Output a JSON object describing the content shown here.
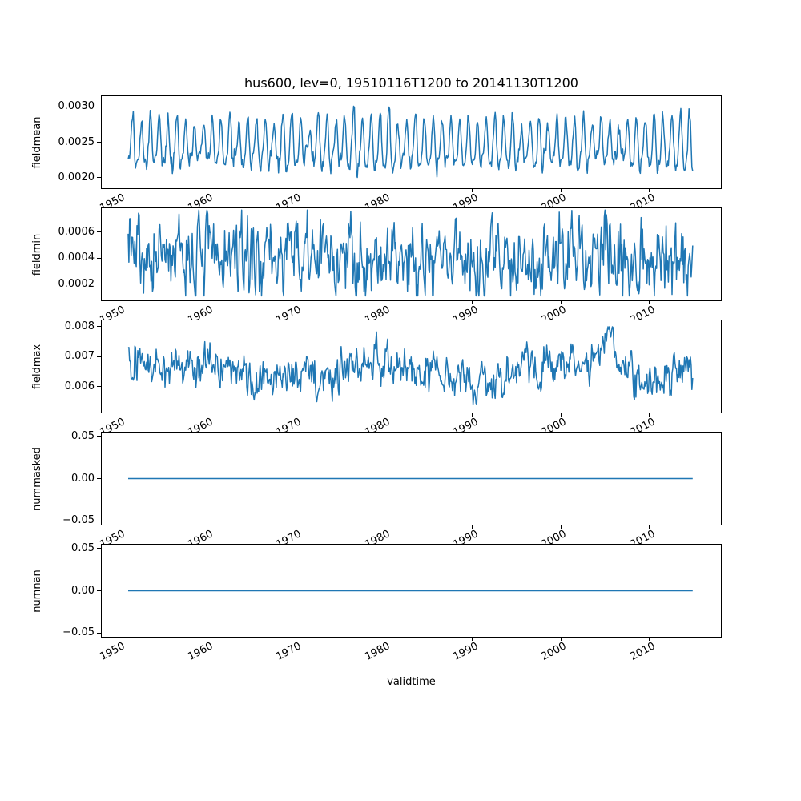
{
  "figure": {
    "title": "hus600, lev=0, 19510116T1200 to 20141130T1200",
    "xlabel": "validtime",
    "background": "#ffffff",
    "line_color": "#1f77b4",
    "frame_color": "#000000",
    "text_color": "#000000"
  },
  "x_axis": {
    "xlim": [
      1947.96,
      2018.2
    ],
    "ticks": [
      1950,
      1960,
      1970,
      1980,
      1990,
      2000,
      2010
    ],
    "tick_labels": [
      "1950",
      "1960",
      "1970",
      "1980",
      "1990",
      "2000",
      "2010"
    ]
  },
  "chart_data": [
    {
      "type": "line",
      "ylabel": "fieldmean",
      "ylim": [
        0.00184,
        0.00316
      ],
      "yticks": [
        0.002,
        0.0025,
        0.003
      ],
      "ytick_labels": [
        "0.0020",
        "0.0025",
        "0.0030"
      ],
      "series": [
        {
          "name": "fieldmean",
          "color": "#1f77b4",
          "x_start": 1951.042,
          "x_end": 2014.915,
          "n_points": 767,
          "points_per_year": 12,
          "approx_mean": 0.00245,
          "approx_range": [
            0.0019,
            0.0031
          ],
          "pattern": "regular annual seasonal cycle, sharp peaks near 0.0028-0.0031, troughs near 0.0019-0.0021",
          "generator": {
            "seed": 42,
            "base": 0.00245,
            "seasonal_amp": 0.00032,
            "seasonal_phase": -1.8,
            "amp_jitter": 0.22,
            "harmonic_amp": 9e-05,
            "harmonic_phase": 0.6,
            "noise": 5e-05,
            "ar": 0.2,
            "clip": [
              0.00184,
              0.00316
            ]
          }
        }
      ]
    },
    {
      "type": "line",
      "ylabel": "fieldmin",
      "ylim": [
        7e-05,
        0.00079
      ],
      "yticks": [
        0.0002,
        0.0004,
        0.0006
      ],
      "ytick_labels": [
        "0.0002",
        "0.0004",
        "0.0006"
      ],
      "series": [
        {
          "name": "fieldmin",
          "color": "#1f77b4",
          "x_start": 1951.042,
          "x_end": 2014.915,
          "n_points": 767,
          "points_per_year": 12,
          "approx_mean": 0.0004,
          "approx_range": [
            0.00011,
            0.00075
          ],
          "pattern": "fast noisy month-to-month oscillation around 0.0004, no trend",
          "generator": {
            "seed": 7,
            "base": 0.00041,
            "seasonal_amp": 5e-05,
            "seasonal_phase": 0.9,
            "amp_jitter": 0.3,
            "noise": 0.00014,
            "ar": 0.35,
            "clip": [
              0.00011,
              0.00077
            ]
          }
        }
      ]
    },
    {
      "type": "line",
      "ylabel": "fieldmax",
      "ylim": [
        0.00511,
        0.00823
      ],
      "yticks": [
        0.006,
        0.007,
        0.008
      ],
      "ytick_labels": [
        "0.006",
        "0.007",
        "0.008"
      ],
      "series": [
        {
          "name": "fieldmax",
          "color": "#1f77b4",
          "x_start": 1951.042,
          "x_end": 2014.915,
          "n_points": 767,
          "points_per_year": 12,
          "approx_mean": 0.0065,
          "approx_range": [
            0.0054,
            0.0079
          ],
          "pattern": "noisy series around 0.0065 with slow multi-year drift, broad bump near 2005 and spike near 2013 reaching ~0.0079, occasional dips to ~0.0054",
          "generator": {
            "seed": 13,
            "base": 0.00652,
            "seasonal_amp": 4e-05,
            "seasonal_phase": 2.2,
            "noise": 0.0003,
            "ar": 0.5,
            "slow": [
              {
                "amp": 0.00028,
                "period": 23,
                "phase": 1.2
              },
              {
                "amp": 0.00018,
                "period": 9,
                "phase": 2.6
              }
            ],
            "bumps": [
              {
                "center": 2005.3,
                "width": 1.5,
                "amp": 0.0006
              },
              {
                "center": 2013.0,
                "width": 0.9,
                "amp": 0.0005
              }
            ],
            "clip": [
              0.00541,
              0.00799
            ]
          }
        }
      ]
    },
    {
      "type": "line",
      "ylabel": "nummasked",
      "ylim": [
        -0.0556,
        0.0556
      ],
      "yticks": [
        0.05,
        0.0,
        -0.05
      ],
      "ytick_labels": [
        "0.05",
        "0.00",
        "−0.05"
      ],
      "series": [
        {
          "name": "nummasked",
          "color": "#1f77b4",
          "x_start": 1951.042,
          "x_end": 2014.915,
          "n_points": 767,
          "points_per_year": 12,
          "approx_mean": 0.0,
          "approx_range": [
            0.0,
            0.0
          ],
          "pattern": "constant zero line",
          "generator": {
            "seed": 1,
            "base": 0.0
          }
        }
      ]
    },
    {
      "type": "line",
      "ylabel": "numnan",
      "ylim": [
        -0.0556,
        0.0556
      ],
      "yticks": [
        0.05,
        0.0,
        -0.05
      ],
      "ytick_labels": [
        "0.05",
        "0.00",
        "−0.05"
      ],
      "series": [
        {
          "name": "numnan",
          "color": "#1f77b4",
          "x_start": 1951.042,
          "x_end": 2014.915,
          "n_points": 767,
          "points_per_year": 12,
          "approx_mean": 0.0,
          "approx_range": [
            0.0,
            0.0
          ],
          "pattern": "constant zero line",
          "generator": {
            "seed": 2,
            "base": 0.0
          }
        }
      ]
    }
  ]
}
